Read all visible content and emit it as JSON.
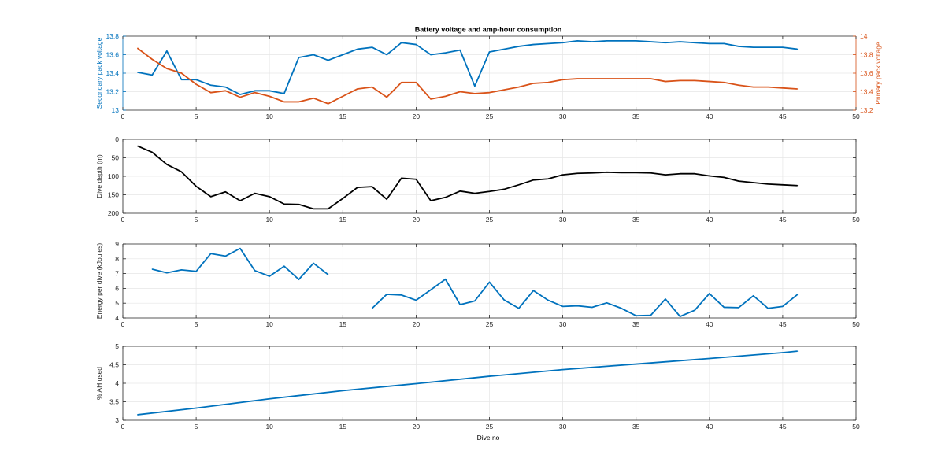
{
  "figure": {
    "title": "Battery voltage and amp-hour consumption",
    "xlabel": "Dive no"
  },
  "colors": {
    "blue": "#0072BD",
    "orange": "#D95319",
    "black": "#000000",
    "axis": "#262626",
    "grid": "#E6E6E6"
  },
  "chart_data": [
    {
      "type": "line",
      "title": "Battery voltage and amp-hour consumption",
      "xlabel": "",
      "ylabel": "Secondary pack voltage",
      "ylabel_right": "Primary pack voltage",
      "xlim": [
        0,
        50
      ],
      "xticks": [
        0,
        5,
        10,
        15,
        20,
        25,
        30,
        35,
        40,
        45,
        50
      ],
      "ylim": [
        13,
        13.8
      ],
      "yticks": [
        13,
        13.2,
        13.4,
        13.6,
        13.8
      ],
      "ytick_labels": [
        "13",
        "13.2",
        "13.4",
        "13.6",
        "13.8"
      ],
      "ylim_right": [
        13.2,
        14
      ],
      "yticks_right": [
        13.2,
        13.4,
        13.6,
        13.8,
        14
      ],
      "ytick_labels_right": [
        "13.2",
        "13.4",
        "13.6",
        "13.8",
        "14"
      ],
      "grid": true,
      "series": [
        {
          "axis": "left",
          "color": "blue",
          "x": [
            1,
            2,
            3,
            4,
            5,
            6,
            7,
            8,
            9,
            10,
            11,
            12,
            13,
            14,
            15,
            16,
            17,
            18,
            19,
            20,
            21,
            22,
            23,
            24,
            25,
            26,
            27,
            28,
            29,
            30,
            31,
            32,
            33,
            34,
            35,
            36,
            37,
            38,
            39,
            40,
            41,
            42,
            43,
            44,
            45,
            46
          ],
          "y": [
            13.41,
            13.38,
            13.64,
            13.33,
            13.33,
            13.27,
            13.25,
            13.17,
            13.21,
            13.21,
            13.18,
            13.57,
            13.6,
            13.54,
            13.6,
            13.66,
            13.68,
            13.6,
            13.73,
            13.71,
            13.6,
            13.62,
            13.65,
            13.26,
            13.63,
            13.66,
            13.69,
            13.71,
            13.72,
            13.73,
            13.75,
            13.74,
            13.75,
            13.75,
            13.75,
            13.74,
            13.73,
            13.74,
            13.73,
            13.72,
            13.72,
            13.69,
            13.68,
            13.68,
            13.68,
            13.66
          ]
        },
        {
          "axis": "right",
          "color": "orange",
          "x": [
            1,
            2,
            3,
            4,
            5,
            6,
            7,
            8,
            9,
            10,
            11,
            12,
            13,
            14,
            15,
            16,
            17,
            18,
            19,
            20,
            21,
            22,
            23,
            24,
            25,
            26,
            27,
            28,
            29,
            30,
            31,
            32,
            33,
            34,
            35,
            36,
            37,
            38,
            39,
            40,
            41,
            42,
            43,
            44,
            45,
            46
          ],
          "y": [
            13.87,
            13.75,
            13.65,
            13.6,
            13.48,
            13.39,
            13.41,
            13.34,
            13.39,
            13.35,
            13.29,
            13.29,
            13.33,
            13.27,
            13.35,
            13.43,
            13.45,
            13.34,
            13.5,
            13.5,
            13.32,
            13.35,
            13.4,
            13.38,
            13.39,
            13.42,
            13.45,
            13.49,
            13.5,
            13.53,
            13.54,
            13.54,
            13.54,
            13.54,
            13.54,
            13.54,
            13.51,
            13.52,
            13.52,
            13.51,
            13.5,
            13.47,
            13.45,
            13.45,
            13.44,
            13.43
          ]
        }
      ]
    },
    {
      "type": "line",
      "ylabel": "Dive depth (m)",
      "xlim": [
        0,
        50
      ],
      "xticks": [
        0,
        5,
        10,
        15,
        20,
        25,
        30,
        35,
        40,
        45,
        50
      ],
      "ylim": [
        0,
        200
      ],
      "y_reversed": true,
      "yticks": [
        0,
        50,
        100,
        150,
        200
      ],
      "ytick_labels": [
        "0",
        "50",
        "100",
        "150",
        "200"
      ],
      "grid": true,
      "series": [
        {
          "axis": "left",
          "color": "black",
          "x": [
            1,
            2,
            3,
            4,
            5,
            6,
            7,
            8,
            9,
            10,
            11,
            12,
            13,
            14,
            15,
            16,
            17,
            18,
            19,
            20,
            21,
            22,
            23,
            24,
            25,
            26,
            27,
            28,
            29,
            30,
            31,
            32,
            33,
            34,
            35,
            36,
            37,
            38,
            39,
            40,
            41,
            42,
            43,
            44,
            45,
            46
          ],
          "y": [
            18,
            35,
            68,
            88,
            127,
            155,
            142,
            166,
            146,
            155,
            175,
            176,
            188,
            188,
            160,
            130,
            128,
            162,
            105,
            108,
            166,
            157,
            140,
            146,
            141,
            135,
            123,
            110,
            107,
            96,
            92,
            91,
            89,
            90,
            90,
            91,
            96,
            93,
            93,
            99,
            103,
            113,
            117,
            121,
            123,
            125
          ]
        }
      ]
    },
    {
      "type": "line",
      "ylabel": "Energy per dive (kJoules)",
      "xlim": [
        0,
        50
      ],
      "xticks": [
        0,
        5,
        10,
        15,
        20,
        25,
        30,
        35,
        40,
        45,
        50
      ],
      "ylim": [
        4,
        9
      ],
      "yticks": [
        4,
        5,
        6,
        7,
        8,
        9
      ],
      "ytick_labels": [
        "4",
        "5",
        "6",
        "7",
        "8",
        "9"
      ],
      "grid": true,
      "series": [
        {
          "axis": "left",
          "color": "blue",
          "x": [
            2,
            3,
            4,
            5,
            6,
            7,
            8,
            9,
            10,
            11,
            12,
            13,
            14,
            15,
            16,
            17,
            18,
            19,
            20,
            21,
            22,
            23,
            24,
            25,
            26,
            27,
            28,
            29,
            30,
            31,
            32,
            33,
            34,
            35,
            36,
            37,
            38,
            39,
            40,
            41,
            42,
            43,
            44,
            45,
            46
          ],
          "y": [
            7.3,
            7.05,
            7.25,
            7.15,
            8.35,
            8.18,
            8.7,
            7.2,
            6.82,
            7.5,
            6.6,
            7.7,
            6.93,
            null,
            null,
            4.65,
            5.6,
            5.55,
            5.2,
            5.9,
            6.62,
            4.9,
            5.15,
            6.42,
            5.22,
            4.65,
            5.85,
            5.2,
            4.78,
            4.82,
            4.72,
            5.02,
            4.65,
            4.15,
            4.18,
            5.28,
            4.1,
            4.52,
            5.65,
            4.72,
            4.7,
            5.5,
            4.65,
            4.78,
            5.58
          ]
        }
      ]
    },
    {
      "type": "line",
      "ylabel": "% AH used",
      "xlabel": "Dive no",
      "xlim": [
        0,
        50
      ],
      "xticks": [
        0,
        5,
        10,
        15,
        20,
        25,
        30,
        35,
        40,
        45,
        50
      ],
      "ylim": [
        3,
        5
      ],
      "yticks": [
        3,
        3.5,
        4,
        4.5,
        5
      ],
      "ytick_labels": [
        "3",
        "3.5",
        "4",
        "4.5",
        "5"
      ],
      "grid": true,
      "series": [
        {
          "axis": "left",
          "color": "blue",
          "x": [
            1,
            5,
            10,
            15,
            20,
            25,
            30,
            35,
            40,
            45,
            46
          ],
          "y": [
            3.15,
            3.33,
            3.58,
            3.8,
            3.99,
            4.19,
            4.37,
            4.52,
            4.67,
            4.83,
            4.87
          ]
        }
      ]
    }
  ]
}
